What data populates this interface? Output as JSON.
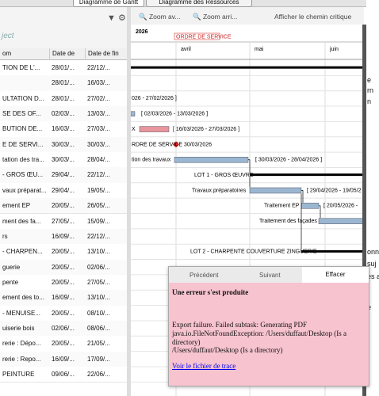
{
  "tabs": [
    "Diagramme de Gantt",
    "Diagramme des Ressources"
  ],
  "logo_text": "ject",
  "toolbar": [
    "Zoom av...",
    "Zoom arri...",
    "Afficher le chemin critique"
  ],
  "timeline": {
    "year": "2026",
    "marker": "ORDRE DE SERVICE",
    "months": [
      "avril",
      "mai",
      "juin"
    ]
  },
  "table": {
    "headers": [
      "om",
      "Date de",
      "Date de fin"
    ],
    "rows": [
      [
        "TION DE L'...",
        "28/01/...",
        "22/12/..."
      ],
      [
        "",
        "28/01/...",
        "16/03/..."
      ],
      [
        "ULTATION D...",
        "28/01/...",
        "27/02/..."
      ],
      [
        "SE DES OF...",
        "02/03/...",
        "13/03/..."
      ],
      [
        "BUTION DE...",
        "16/03/...",
        "27/03/..."
      ],
      [
        "E DE SERVI...",
        "30/03/...",
        "30/03/..."
      ],
      [
        "tation des tra...",
        "30/03/...",
        "28/04/..."
      ],
      [
        "- GROS ŒU...",
        "29/04/...",
        "22/12/..."
      ],
      [
        "vaux préparat...",
        "29/04/...",
        "19/05/..."
      ],
      [
        "ement EP",
        "20/05/...",
        "26/05/..."
      ],
      [
        "ment des fa...",
        "27/05/...",
        "15/09/..."
      ],
      [
        "rs",
        "16/09/...",
        "22/12/..."
      ],
      [
        "- CHARPEN...",
        "20/05/...",
        "13/10/..."
      ],
      [
        "guerie",
        "20/05/...",
        "02/06/..."
      ],
      [
        "pente",
        "20/05/...",
        "27/05/..."
      ],
      [
        "ement des to...",
        "16/09/...",
        "13/10/..."
      ],
      [
        "- MENUISE...",
        "20/05/...",
        "08/10/..."
      ],
      [
        "uiserie bois",
        "02/06/...",
        "08/06/..."
      ],
      [
        "rerie : Dépo...",
        "20/05/...",
        "21/05/..."
      ],
      [
        "rerie : Repo...",
        "16/09/...",
        "17/09/..."
      ],
      [
        "PEINTURE",
        "09/06/...",
        "22/06/..."
      ]
    ]
  },
  "gantt_texts": [
    "026 - 27/02/2026 ]",
    "[ 02/03/2026 - 13/03/2026 ]",
    "X",
    "[ 16/03/2026 - 27/03/2026 ]",
    "RDRE DE SERVICE",
    "30/03/2026",
    "tion des travaux",
    "[ 30/03/2026 - 28/04/2026 ]",
    "LOT 1 - GROS ŒUVRE",
    "Travaux préparatoires",
    "[ 29/04/2026 - 19/05/2",
    "Traitement EP",
    "[ 20/05/2026 -",
    "Traitement des façades",
    "LOT 2 - CHARPENTE COUVERTURE ZINGUERIE"
  ],
  "popup": {
    "tabs": [
      "Précédent",
      "Suivant",
      "Effacer"
    ],
    "title": "Une erreur s'est produite",
    "lines": [
      "Export failure. Failed subtask: Generating PDF",
      "java.io.FileNotFoundException: /Users/duffaut/Desktop (Is a",
      "directory)",
      "/Users/duffaut/Desktop (Is a directory)"
    ],
    "link": "Voir le fichier de trace"
  },
  "side_fragments": [
    "e",
    "rn",
    "n",
    "onn",
    "suj",
    "es a",
    "e",
    "t"
  ]
}
